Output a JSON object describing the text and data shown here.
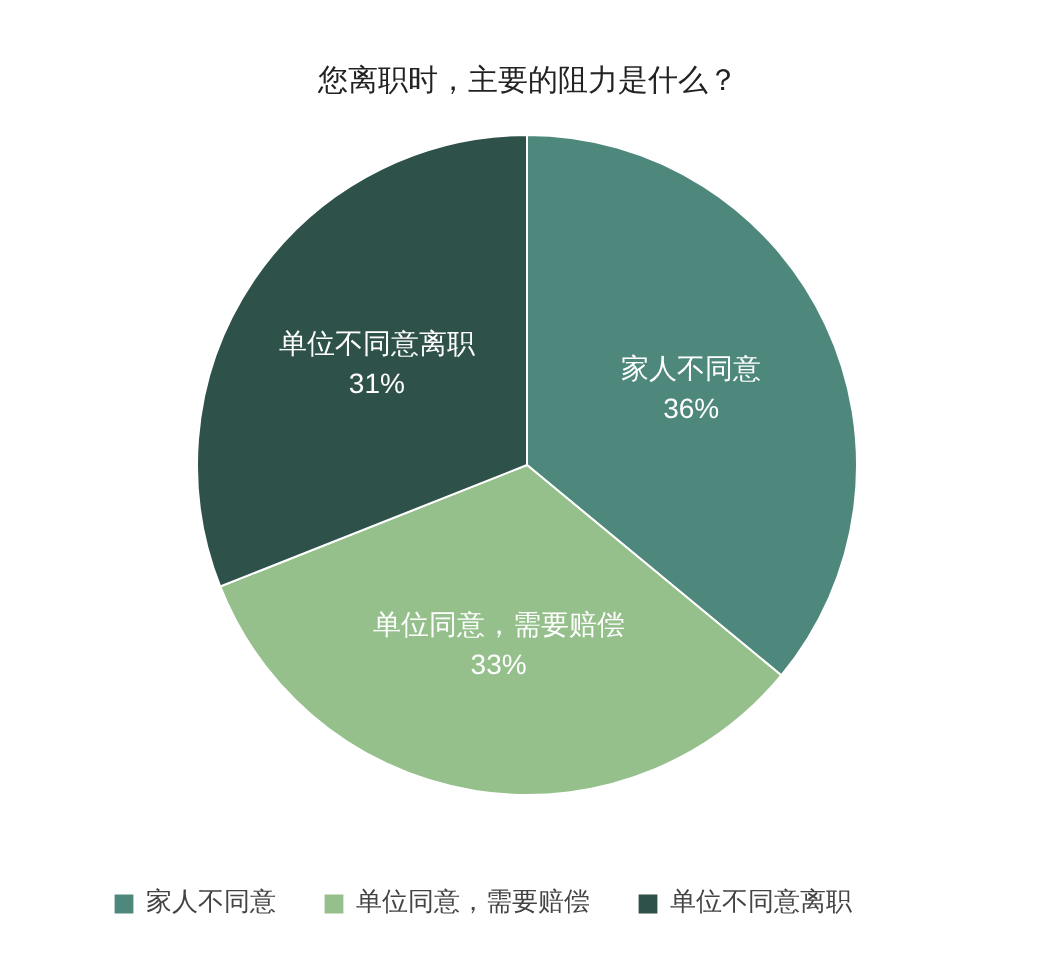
{
  "chart_data": {
    "type": "pie",
    "title": "您离职时，主要的阻力是什么？",
    "categories": [
      "家人不同意",
      "单位同意，需要赔偿",
      "单位不同意离职"
    ],
    "values": [
      36,
      33,
      31
    ],
    "colors": [
      "#4e877b",
      "#95c08b",
      "#2e5149"
    ],
    "value_labels": [
      "36%",
      "33%",
      "31%"
    ],
    "legend": "bottom"
  }
}
